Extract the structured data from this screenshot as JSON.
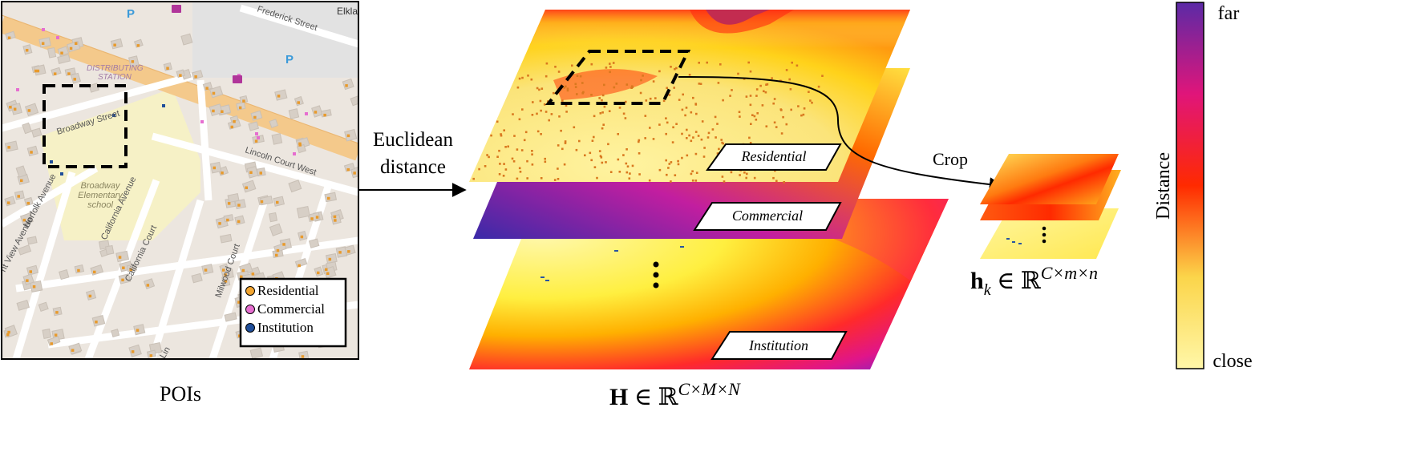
{
  "map": {
    "caption": "POIs",
    "streets": {
      "frederick": "Frederick Street",
      "broadway": "Broadway Street",
      "lincoln": "Lincoln Court West",
      "norfolk": "Norfolk Avenue",
      "california_ave": "California Avenue",
      "california_ct": "California Court",
      "view": "nt View Avenue",
      "milwood": "Milwood Court",
      "lin": "Lin"
    },
    "labels": {
      "distributing1": "DISTRIBUTING",
      "distributing2": "STATION",
      "school1": "Broadway",
      "school2": "Elementary",
      "school3": "school",
      "parking": "P",
      "elk": "Elkla"
    },
    "legend": [
      {
        "label": "Residential",
        "color": "#f2a531"
      },
      {
        "label": "Commercial",
        "color": "#e66ed0"
      },
      {
        "label": "Institution",
        "color": "#1f4e9a"
      }
    ]
  },
  "arrow_text": [
    "Euclidean",
    "distance"
  ],
  "layers": [
    {
      "label": "Residential"
    },
    {
      "label": "Commercial"
    },
    {
      "label": "Institution"
    }
  ],
  "ellipsis": "⋮",
  "big_formula": {
    "bold": "H",
    "rest": " ∈ ℝ",
    "sup": "C×M×N"
  },
  "crop_label": "Crop",
  "small_formula": {
    "bold": "h",
    "sub": "k",
    "rest": " ∈ ℝ",
    "sup": "C×m×n"
  },
  "colorbar": {
    "title": "Distance",
    "top": "far",
    "bottom": "close"
  },
  "colors": {
    "close": "#fff7a8",
    "mid": "#ff2a00",
    "far": "#5b2aa6"
  }
}
